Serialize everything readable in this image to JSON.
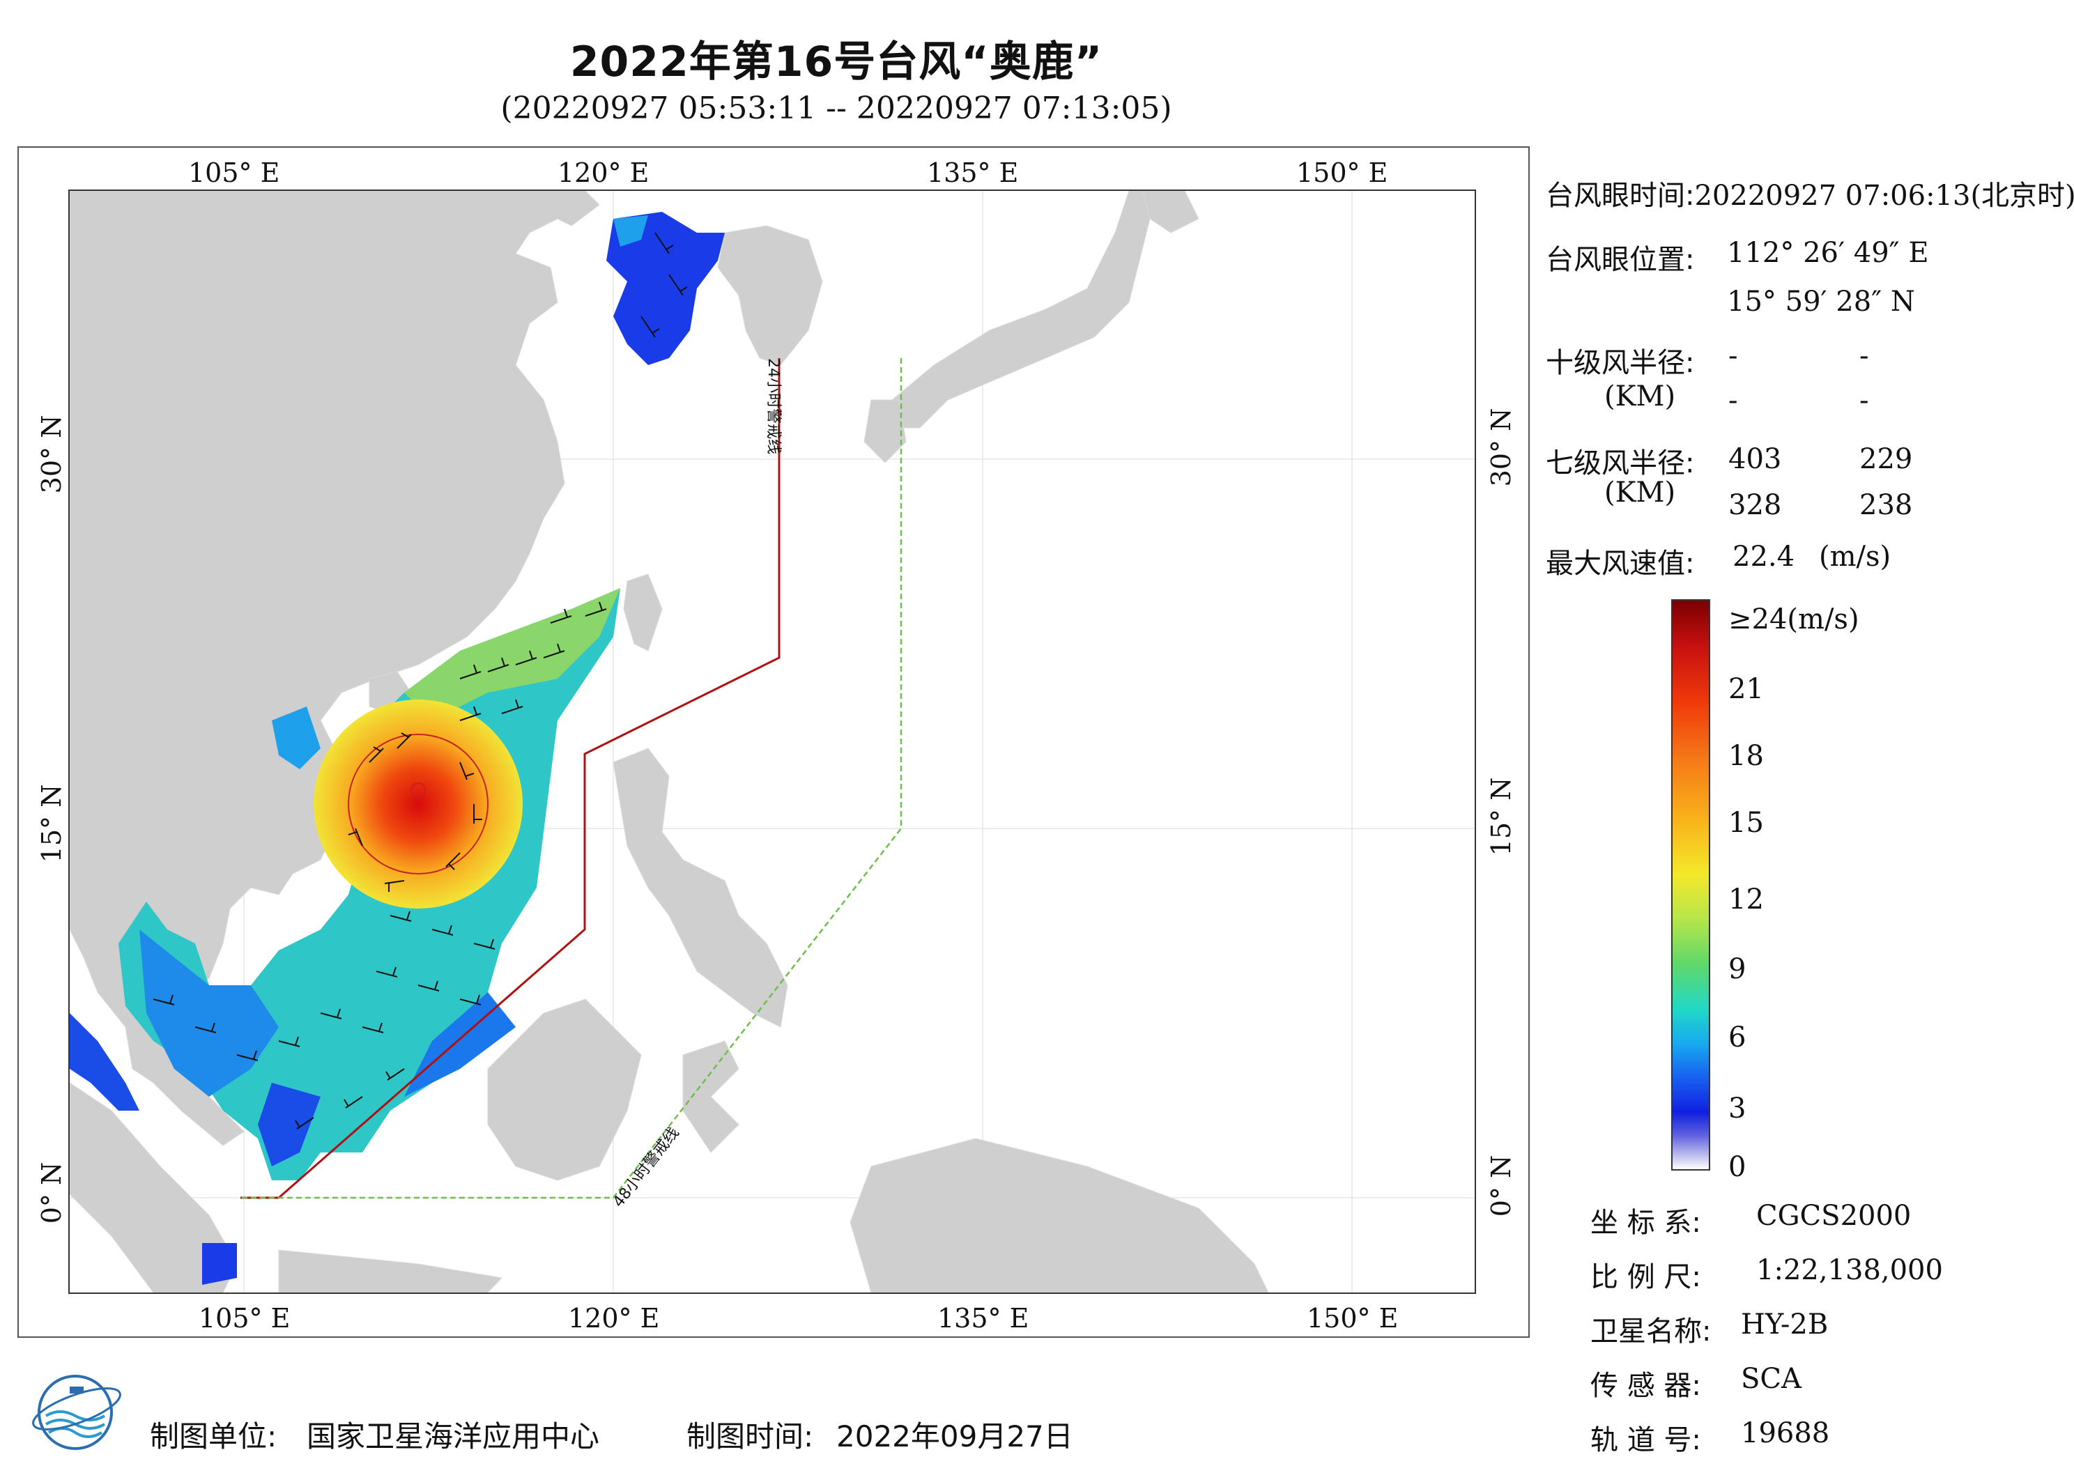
{
  "header": {
    "title": "2022年第16号台风“奥鹿”",
    "subtitle": "(20220927 05:53:11 -- 20220927 07:13:05)"
  },
  "map": {
    "lon_ticks": [
      "105° E",
      "120° E",
      "135° E",
      "150° E"
    ],
    "lat_ticks": [
      "30° N",
      "15° N",
      "0° N"
    ],
    "warning_line_24h": "24小时警戒线",
    "warning_line_48h": "48小时警戒线"
  },
  "info": {
    "eye_time_label": "台风眼时间:",
    "eye_time_value": "20220927 07:06:13(北京时)",
    "eye_pos_label": "台风眼位置:",
    "eye_lon": "112° 26′ 49″ E",
    "eye_lat": "15° 59′ 28″ N",
    "r10_label": "十级风半径:",
    "km_label": "(KM)",
    "r10_values": [
      "-",
      "-",
      "-",
      "-"
    ],
    "r7_label": "七级风半径:",
    "r7_values": [
      "403",
      "229",
      "328",
      "238"
    ],
    "max_wind_label": "最大风速值:",
    "max_wind_value": "22.4",
    "max_wind_unit": "(m/s)"
  },
  "colorbar": {
    "labels": [
      "≥24(m/s)",
      "21",
      "18",
      "15",
      "12",
      "9",
      "6",
      "3",
      "0"
    ]
  },
  "meta": {
    "crs_label": "坐 标 系:",
    "crs_value": "CGCS2000",
    "scale_label": "比 例 尺:",
    "scale_value": "1:22,138,000",
    "satellite_label": "卫星名称:",
    "satellite_value": "HY-2B",
    "sensor_label": "传 感 器:",
    "sensor_value": "SCA",
    "orbit_label": "轨 道 号:",
    "orbit_value": "19688"
  },
  "footer": {
    "producer_label": "制图单位:",
    "producer_value": "国家卫星海洋应用中心",
    "date_label": "制图时间:",
    "date_value": "2022年09月27日"
  },
  "colors": {
    "land": "#cfcfcf",
    "warning_24h": "#b01010",
    "warning_48h": "#6cc04a"
  }
}
